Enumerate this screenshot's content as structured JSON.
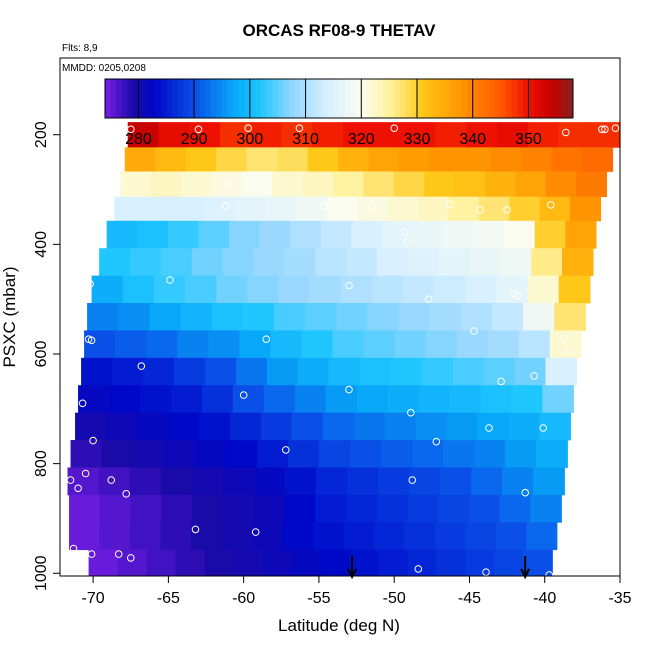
{
  "chart_data": {
    "type": "heatmap",
    "title": "ORCAS RF08-9 THETAV",
    "annotations": {
      "flights": "Flts: 8,9",
      "dates": "MMDD: 0205,0208"
    },
    "xlabel": "Latitude (deg N)",
    "ylabel": "PSXC (mbar)",
    "xlim": [
      -72.2,
      -35
    ],
    "ylim": [
      1005,
      60
    ],
    "y_reversed": true,
    "x_ticks": [
      "-70",
      "-65",
      "-60",
      "-55",
      "-50",
      "-45",
      "-40",
      "-35"
    ],
    "y_ticks": [
      "200",
      "400",
      "600",
      "800",
      "1000"
    ],
    "colorbar": {
      "range": [
        274,
        358
      ],
      "ticks": [
        "280",
        "290",
        "300",
        "310",
        "320",
        "330",
        "340",
        "350"
      ],
      "stops": [
        {
          "v": 274,
          "c": "#7b1fe6"
        },
        {
          "v": 279,
          "c": "#1a0aa8"
        },
        {
          "v": 283,
          "c": "#0008c8"
        },
        {
          "v": 290,
          "c": "#0a4fe8"
        },
        {
          "v": 297,
          "c": "#08a8f8"
        },
        {
          "v": 302,
          "c": "#20c6ff"
        },
        {
          "v": 308,
          "c": "#9ad8ff"
        },
        {
          "v": 314,
          "c": "#d8f0ff"
        },
        {
          "v": 320,
          "c": "#fafcf0"
        },
        {
          "v": 325,
          "c": "#fff2a0"
        },
        {
          "v": 331,
          "c": "#ffc818"
        },
        {
          "v": 338,
          "c": "#ff9400"
        },
        {
          "v": 345,
          "c": "#ff5a00"
        },
        {
          "v": 350,
          "c": "#ee1000"
        },
        {
          "v": 354,
          "c": "#c80000"
        },
        {
          "v": 358,
          "c": "#8a2020"
        }
      ]
    },
    "bands": [
      {
        "p_top": 177,
        "p_bot": 223,
        "x_left": -67.7,
        "x_right": -35.0,
        "values": [
          354,
          351,
          350,
          348,
          349,
          348,
          349,
          350,
          350,
          350,
          349,
          350,
          351,
          349,
          348,
          348
        ]
      },
      {
        "p_top": 223,
        "p_bot": 267,
        "x_left": -67.9,
        "x_right": -35.5,
        "values": [
          335,
          333,
          331,
          329,
          327,
          328,
          331,
          334,
          336,
          337,
          338,
          338,
          339,
          340,
          342,
          343
        ]
      },
      {
        "p_top": 267,
        "p_bot": 313,
        "x_left": -68.2,
        "x_right": -35.9,
        "values": [
          322,
          323,
          322,
          321,
          320,
          322,
          323,
          325,
          327,
          329,
          331,
          332,
          334,
          336,
          339,
          341
        ]
      },
      {
        "p_top": 313,
        "p_bot": 357,
        "x_left": -68.6,
        "x_right": -36.3,
        "values": [
          314,
          314,
          314,
          315,
          316,
          317,
          318,
          320,
          321,
          322,
          323,
          325,
          327,
          330,
          333,
          338
        ]
      },
      {
        "p_top": 357,
        "p_bot": 407,
        "x_left": -69.1,
        "x_right": -36.6,
        "values": [
          300,
          301,
          303,
          305,
          307,
          308,
          310,
          312,
          314,
          316,
          317,
          318,
          319,
          320,
          330,
          336
        ]
      },
      {
        "p_top": 407,
        "p_bot": 457,
        "x_left": -69.6,
        "x_right": -36.8,
        "values": [
          302,
          303,
          304,
          306,
          307,
          308,
          309,
          311,
          312,
          314,
          315,
          316,
          317,
          318,
          326,
          334
        ]
      },
      {
        "p_top": 457,
        "p_bot": 507,
        "x_left": -70.1,
        "x_right": -37.0,
        "values": [
          298,
          301,
          303,
          304,
          306,
          307,
          308,
          309,
          310,
          311,
          312,
          313,
          314,
          316,
          322,
          331
        ]
      },
      {
        "p_top": 507,
        "p_bot": 557,
        "x_left": -70.4,
        "x_right": -37.3,
        "values": [
          294,
          295,
          297,
          299,
          301,
          302,
          304,
          305,
          306,
          307,
          308,
          309,
          310,
          312,
          318,
          327
        ]
      },
      {
        "p_top": 557,
        "p_bot": 607,
        "x_left": -70.6,
        "x_right": -37.6,
        "values": [
          290,
          291,
          292,
          294,
          295,
          297,
          300,
          302,
          304,
          305,
          306,
          307,
          308,
          309,
          311,
          322
        ]
      },
      {
        "p_top": 607,
        "p_bot": 657,
        "x_left": -70.8,
        "x_right": -37.9,
        "values": [
          284,
          285,
          286,
          288,
          290,
          293,
          296,
          298,
          300,
          301,
          302,
          303,
          304,
          305,
          306,
          314
        ]
      },
      {
        "p_top": 657,
        "p_bot": 707,
        "x_left": -71.0,
        "x_right": -38.1,
        "values": [
          282,
          283,
          284,
          285,
          287,
          290,
          292,
          294,
          296,
          297,
          298,
          299,
          300,
          301,
          302,
          306
        ]
      },
      {
        "p_top": 707,
        "p_bot": 757,
        "x_left": -71.2,
        "x_right": -38.3,
        "values": [
          280,
          281,
          282,
          283,
          284,
          286,
          288,
          290,
          292,
          293,
          294,
          295,
          296,
          297,
          298,
          300
        ]
      },
      {
        "p_top": 757,
        "p_bot": 807,
        "x_left": -71.5,
        "x_right": -38.5,
        "values": [
          278,
          279,
          280,
          281,
          282,
          283,
          285,
          287,
          289,
          290,
          291,
          292,
          293,
          294,
          296,
          298
        ]
      },
      {
        "p_top": 807,
        "p_bot": 857,
        "x_left": -71.7,
        "x_right": -38.7,
        "values": [
          276,
          277,
          278,
          279,
          280,
          281,
          282,
          284,
          286,
          287,
          288,
          289,
          290,
          292,
          294,
          296
        ]
      },
      {
        "p_top": 857,
        "p_bot": 907,
        "x_left": -71.6,
        "x_right": -38.9,
        "values": [
          275,
          276,
          277,
          278,
          279,
          280,
          281,
          283,
          285,
          286,
          287,
          288,
          289,
          290,
          292,
          294
        ]
      },
      {
        "p_top": 907,
        "p_bot": 957,
        "x_left": -71.6,
        "x_right": -39.2,
        "values": [
          275,
          276,
          277,
          278,
          279,
          280,
          281,
          283,
          284,
          285,
          286,
          287,
          288,
          289,
          290,
          292
        ]
      },
      {
        "p_top": 957,
        "p_bot": 1005,
        "x_left": -70.3,
        "x_right": -39.5,
        "values": [
          275,
          276,
          277,
          278,
          279,
          280,
          281,
          282,
          283,
          284,
          285,
          286,
          287,
          288,
          289,
          290
        ]
      }
    ],
    "markers": [
      [
        -67.5,
        190
      ],
      [
        -63.0,
        190
      ],
      [
        -59.7,
        188
      ],
      [
        -56.3,
        188
      ],
      [
        -50.0,
        188
      ],
      [
        -38.6,
        196
      ],
      [
        -36.2,
        190
      ],
      [
        -36.0,
        190
      ],
      [
        -35.3,
        188
      ],
      [
        -68.1,
        290
      ],
      [
        -61.0,
        290
      ],
      [
        -61.2,
        330
      ],
      [
        -54.7,
        330
      ],
      [
        -54.3,
        330
      ],
      [
        -51.5,
        330
      ],
      [
        -46.3,
        327
      ],
      [
        -44.3,
        337
      ],
      [
        -42.5,
        337
      ],
      [
        -39.6,
        328
      ],
      [
        -69.4,
        377
      ],
      [
        -49.3,
        377
      ],
      [
        -49.1,
        395
      ],
      [
        -64.9,
        465
      ],
      [
        -53.0,
        475
      ],
      [
        -47.7,
        500
      ],
      [
        -42.0,
        490
      ],
      [
        -41.8,
        493
      ],
      [
        -70.2,
        472
      ],
      [
        -70.3,
        573
      ],
      [
        -70.1,
        575
      ],
      [
        -58.5,
        573
      ],
      [
        -44.7,
        558
      ],
      [
        -38.7,
        572
      ],
      [
        -38.4,
        595
      ],
      [
        -66.8,
        622
      ],
      [
        -42.9,
        650
      ],
      [
        -40.7,
        640
      ],
      [
        -60.0,
        675
      ],
      [
        -53.0,
        665
      ],
      [
        -70.7,
        690
      ],
      [
        -48.9,
        707
      ],
      [
        -43.7,
        735
      ],
      [
        -40.1,
        735
      ],
      [
        -70.0,
        758
      ],
      [
        -57.2,
        775
      ],
      [
        -47.2,
        760
      ],
      [
        -70.5,
        818
      ],
      [
        -71.5,
        830
      ],
      [
        -71.0,
        845
      ],
      [
        -68.8,
        830
      ],
      [
        -67.8,
        855
      ],
      [
        -48.8,
        830
      ],
      [
        -41.3,
        853
      ],
      [
        -63.2,
        920
      ],
      [
        -59.2,
        925
      ],
      [
        -71.3,
        955
      ],
      [
        -70.1,
        965
      ],
      [
        -68.3,
        965
      ],
      [
        -67.5,
        972
      ],
      [
        -48.4,
        992
      ],
      [
        -43.9,
        998
      ],
      [
        -39.7,
        1003
      ]
    ],
    "arrows_x": [
      -52.8,
      -41.3
    ]
  }
}
